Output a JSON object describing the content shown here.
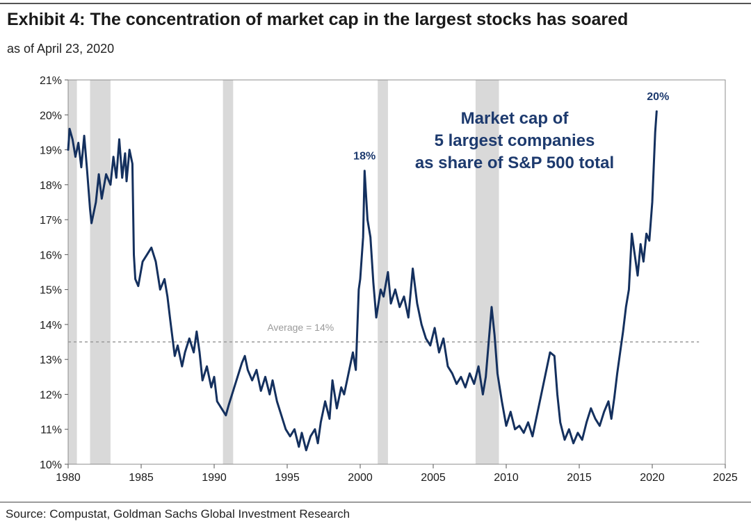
{
  "header": {
    "title": "Exhibit 4: The concentration of market cap in the largest stocks has soared",
    "subtitle": "as of April 23, 2020"
  },
  "footer": {
    "source": "Source: Compustat, Goldman Sachs Global Investment Research"
  },
  "colors": {
    "line": "#14305e",
    "label": "#1d3a6e",
    "recession": "#d9d9d9",
    "average": "#9a9a9a"
  },
  "chart_data": {
    "type": "line",
    "title": "Market cap of 5 largest companies as share of S&P 500 total",
    "annotation_lines": [
      "Market cap of",
      "5 largest companies",
      "as share of S&P 500 total"
    ],
    "xlabel": "",
    "ylabel": "",
    "xlim": [
      1980,
      2025
    ],
    "ylim": [
      10,
      21
    ],
    "x_ticks": [
      1980,
      1985,
      1990,
      1995,
      2000,
      2005,
      2010,
      2015,
      2020,
      2025
    ],
    "y_ticks": [
      10,
      11,
      12,
      13,
      14,
      15,
      16,
      17,
      18,
      19,
      20,
      21
    ],
    "y_tick_labels": [
      "10%",
      "11%",
      "12%",
      "13%",
      "14%",
      "15%",
      "16%",
      "17%",
      "18%",
      "19%",
      "20%",
      "21%"
    ],
    "average": {
      "value": 13.5,
      "label": "Average = 14%"
    },
    "point_labels": [
      {
        "x": 2000.2,
        "y": 18.4,
        "text": "18%"
      },
      {
        "x": 2020.3,
        "y": 20.1,
        "text": "20%"
      }
    ],
    "recessions": [
      [
        1980.0,
        1980.6
      ],
      [
        1981.5,
        1982.9
      ],
      [
        1990.6,
        1991.3
      ],
      [
        2001.2,
        2001.9
      ],
      [
        2007.9,
        2009.5
      ]
    ],
    "series": [
      {
        "name": "Market cap of 5 largest companies as share of S&P 500 total",
        "points": [
          [
            1980.0,
            19.0
          ],
          [
            1980.1,
            19.6
          ],
          [
            1980.3,
            19.3
          ],
          [
            1980.5,
            18.8
          ],
          [
            1980.7,
            19.2
          ],
          [
            1980.9,
            18.5
          ],
          [
            1981.1,
            19.4
          ],
          [
            1981.3,
            18.4
          ],
          [
            1981.5,
            17.3
          ],
          [
            1981.6,
            16.9
          ],
          [
            1981.9,
            17.5
          ],
          [
            1982.1,
            18.3
          ],
          [
            1982.3,
            17.6
          ],
          [
            1982.6,
            18.3
          ],
          [
            1982.9,
            18.0
          ],
          [
            1983.1,
            18.8
          ],
          [
            1983.3,
            18.2
          ],
          [
            1983.5,
            19.3
          ],
          [
            1983.7,
            18.2
          ],
          [
            1983.9,
            18.9
          ],
          [
            1984.0,
            18.1
          ],
          [
            1984.2,
            19.0
          ],
          [
            1984.4,
            18.6
          ],
          [
            1984.5,
            16.0
          ],
          [
            1984.6,
            15.3
          ],
          [
            1984.8,
            15.1
          ],
          [
            1985.1,
            15.8
          ],
          [
            1985.4,
            16.0
          ],
          [
            1985.7,
            16.2
          ],
          [
            1986.0,
            15.8
          ],
          [
            1986.3,
            15.0
          ],
          [
            1986.6,
            15.3
          ],
          [
            1986.8,
            14.8
          ],
          [
            1987.0,
            14.1
          ],
          [
            1987.3,
            13.1
          ],
          [
            1987.5,
            13.4
          ],
          [
            1987.8,
            12.8
          ],
          [
            1988.0,
            13.2
          ],
          [
            1988.3,
            13.6
          ],
          [
            1988.6,
            13.2
          ],
          [
            1988.8,
            13.8
          ],
          [
            1989.0,
            13.2
          ],
          [
            1989.2,
            12.4
          ],
          [
            1989.5,
            12.8
          ],
          [
            1989.8,
            12.2
          ],
          [
            1990.0,
            12.5
          ],
          [
            1990.2,
            11.8
          ],
          [
            1990.5,
            11.6
          ],
          [
            1990.8,
            11.4
          ],
          [
            1991.0,
            11.7
          ],
          [
            1991.3,
            12.1
          ],
          [
            1991.6,
            12.5
          ],
          [
            1991.9,
            12.9
          ],
          [
            1992.1,
            13.1
          ],
          [
            1992.3,
            12.7
          ],
          [
            1992.6,
            12.4
          ],
          [
            1992.9,
            12.7
          ],
          [
            1993.2,
            12.1
          ],
          [
            1993.5,
            12.5
          ],
          [
            1993.8,
            12.0
          ],
          [
            1994.0,
            12.4
          ],
          [
            1994.3,
            11.8
          ],
          [
            1994.6,
            11.4
          ],
          [
            1994.9,
            11.0
          ],
          [
            1995.2,
            10.8
          ],
          [
            1995.5,
            11.0
          ],
          [
            1995.8,
            10.5
          ],
          [
            1996.0,
            10.9
          ],
          [
            1996.3,
            10.4
          ],
          [
            1996.6,
            10.8
          ],
          [
            1996.9,
            11.0
          ],
          [
            1997.1,
            10.6
          ],
          [
            1997.3,
            11.2
          ],
          [
            1997.6,
            11.8
          ],
          [
            1997.9,
            11.3
          ],
          [
            1998.1,
            12.4
          ],
          [
            1998.4,
            11.6
          ],
          [
            1998.7,
            12.2
          ],
          [
            1998.9,
            12.0
          ],
          [
            1999.2,
            12.6
          ],
          [
            1999.5,
            13.2
          ],
          [
            1999.7,
            12.7
          ],
          [
            1999.9,
            15.0
          ],
          [
            2000.0,
            15.3
          ],
          [
            2000.2,
            16.5
          ],
          [
            2000.3,
            18.4
          ],
          [
            2000.5,
            17.0
          ],
          [
            2000.7,
            16.5
          ],
          [
            2000.9,
            15.2
          ],
          [
            2001.1,
            14.2
          ],
          [
            2001.4,
            15.0
          ],
          [
            2001.6,
            14.8
          ],
          [
            2001.9,
            15.5
          ],
          [
            2002.1,
            14.6
          ],
          [
            2002.4,
            15.0
          ],
          [
            2002.7,
            14.5
          ],
          [
            2003.0,
            14.8
          ],
          [
            2003.3,
            14.2
          ],
          [
            2003.6,
            15.6
          ],
          [
            2003.9,
            14.6
          ],
          [
            2004.2,
            14.0
          ],
          [
            2004.5,
            13.6
          ],
          [
            2004.8,
            13.4
          ],
          [
            2005.1,
            13.9
          ],
          [
            2005.4,
            13.2
          ],
          [
            2005.7,
            13.6
          ],
          [
            2006.0,
            12.8
          ],
          [
            2006.3,
            12.6
          ],
          [
            2006.6,
            12.3
          ],
          [
            2006.9,
            12.5
          ],
          [
            2007.2,
            12.2
          ],
          [
            2007.5,
            12.6
          ],
          [
            2007.8,
            12.3
          ],
          [
            2008.1,
            12.8
          ],
          [
            2008.4,
            12.0
          ],
          [
            2008.6,
            12.5
          ],
          [
            2008.8,
            13.5
          ],
          [
            2009.0,
            14.5
          ],
          [
            2009.2,
            13.7
          ],
          [
            2009.4,
            12.6
          ],
          [
            2009.7,
            11.8
          ],
          [
            2010.0,
            11.1
          ],
          [
            2010.3,
            11.5
          ],
          [
            2010.6,
            11.0
          ],
          [
            2010.9,
            11.1
          ],
          [
            2011.2,
            10.9
          ],
          [
            2011.5,
            11.2
          ],
          [
            2011.8,
            10.8
          ],
          [
            2012.1,
            11.4
          ],
          [
            2012.4,
            12.0
          ],
          [
            2012.7,
            12.6
          ],
          [
            2013.0,
            13.2
          ],
          [
            2013.3,
            13.1
          ],
          [
            2013.5,
            12.0
          ],
          [
            2013.7,
            11.2
          ],
          [
            2014.0,
            10.7
          ],
          [
            2014.3,
            11.0
          ],
          [
            2014.6,
            10.6
          ],
          [
            2014.9,
            10.9
          ],
          [
            2015.2,
            10.7
          ],
          [
            2015.5,
            11.2
          ],
          [
            2015.8,
            11.6
          ],
          [
            2016.1,
            11.3
          ],
          [
            2016.4,
            11.1
          ],
          [
            2016.7,
            11.5
          ],
          [
            2017.0,
            11.8
          ],
          [
            2017.2,
            11.3
          ],
          [
            2017.4,
            11.9
          ],
          [
            2017.6,
            12.6
          ],
          [
            2017.8,
            13.2
          ],
          [
            2018.0,
            13.8
          ],
          [
            2018.2,
            14.5
          ],
          [
            2018.4,
            15.0
          ],
          [
            2018.6,
            16.6
          ],
          [
            2018.8,
            16.0
          ],
          [
            2019.0,
            15.4
          ],
          [
            2019.2,
            16.3
          ],
          [
            2019.4,
            15.8
          ],
          [
            2019.6,
            16.6
          ],
          [
            2019.8,
            16.4
          ],
          [
            2020.0,
            17.5
          ],
          [
            2020.1,
            18.5
          ],
          [
            2020.2,
            19.5
          ],
          [
            2020.3,
            20.1
          ]
        ]
      }
    ]
  }
}
